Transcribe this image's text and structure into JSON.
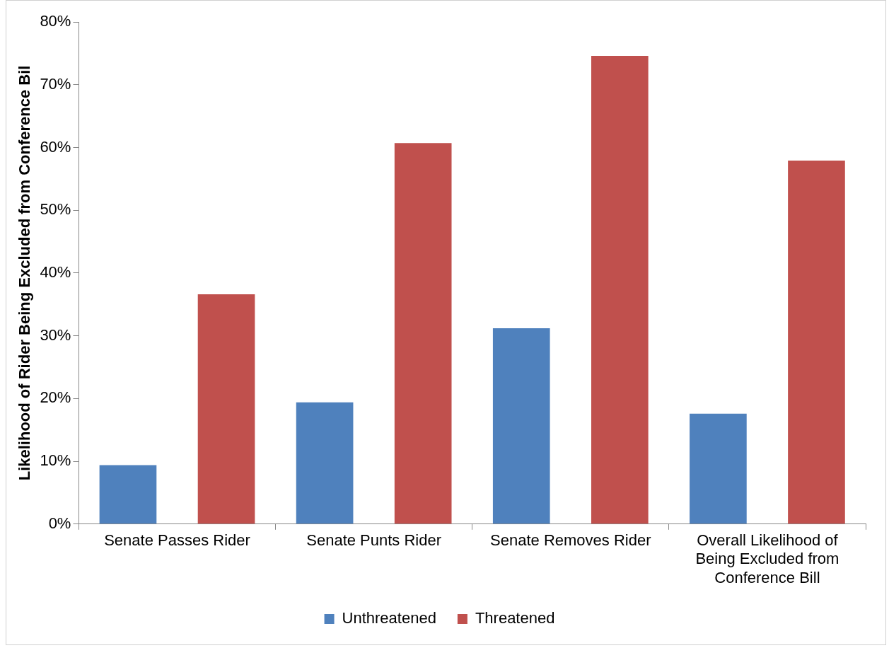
{
  "chart_data": {
    "type": "bar",
    "ylabel": "Likelihood of Rider Being Excluded from Conference Bil",
    "categories": [
      "Senate Passes Rider",
      "Senate Punts Rider",
      "Senate Removes Rider",
      "Overall Likelihood of Being Excluded from Conference Bill"
    ],
    "series": [
      {
        "name": "Unthreatened",
        "color": "#4f81bd",
        "values": [
          9.4,
          19.4,
          31.2,
          17.6
        ]
      },
      {
        "name": "Threatened",
        "color": "#c0504d",
        "values": [
          36.6,
          60.7,
          74.6,
          57.9
        ]
      }
    ],
    "ylim": [
      0,
      80
    ],
    "yticks": [
      {
        "value": 0,
        "label": "0%"
      },
      {
        "value": 10,
        "label": "10%"
      },
      {
        "value": 20,
        "label": "20%"
      },
      {
        "value": 30,
        "label": "30%"
      },
      {
        "value": 40,
        "label": "40%"
      },
      {
        "value": 50,
        "label": "50%"
      },
      {
        "value": 60,
        "label": "60%"
      },
      {
        "value": 70,
        "label": "70%"
      },
      {
        "value": 80,
        "label": "80%"
      }
    ],
    "grid": false,
    "legend": "bottom"
  }
}
